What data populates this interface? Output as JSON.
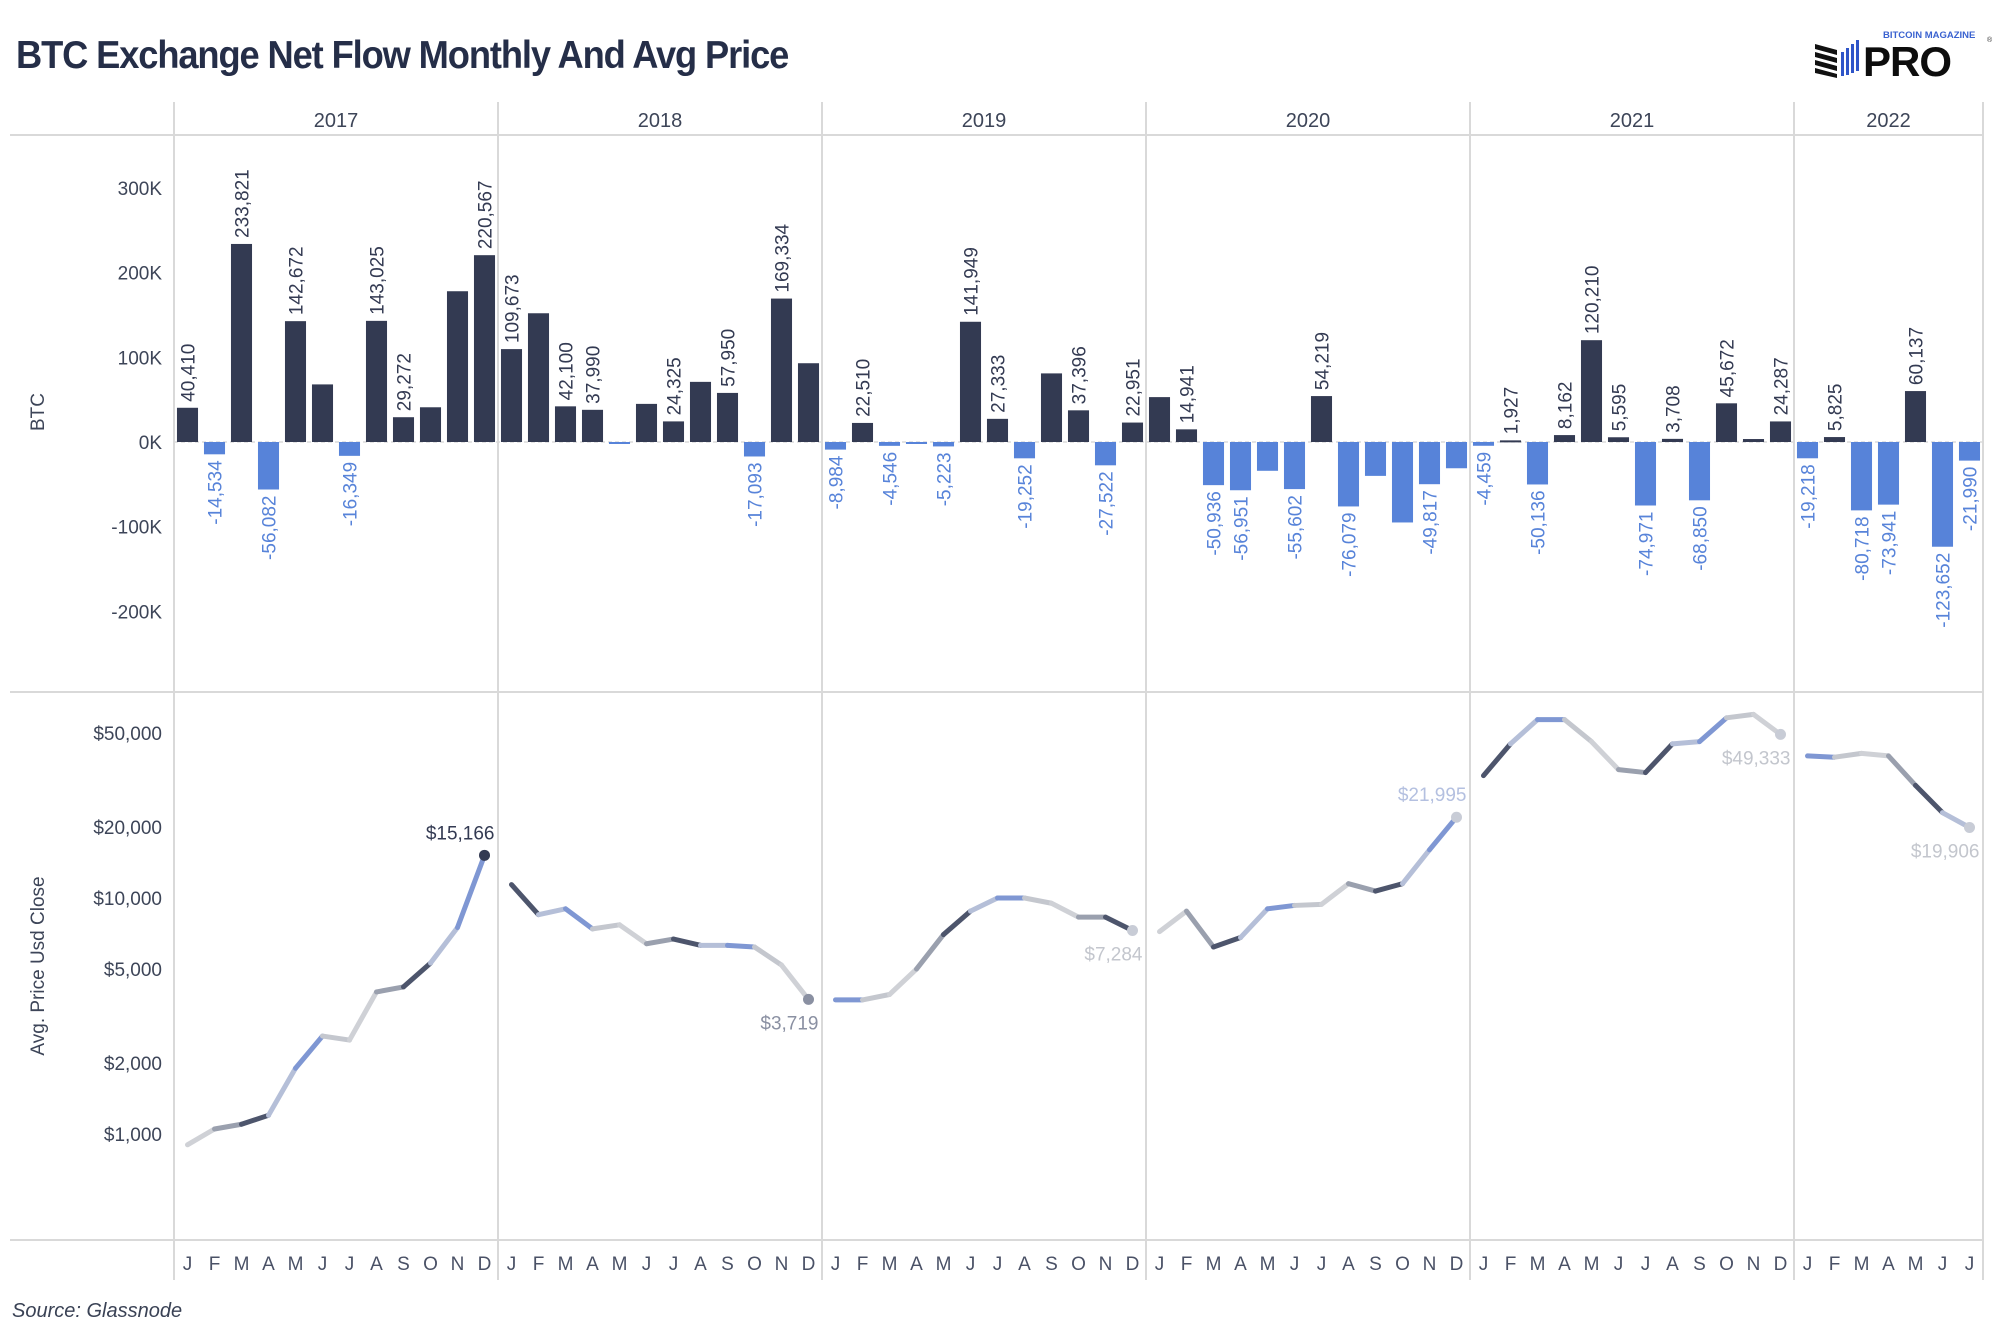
{
  "title": "BTC Exchange Net Flow Monthly And Avg Price",
  "logo": {
    "top_text": "BITCOIN MAGAZINE",
    "main_text": "PRO",
    "registered": "®"
  },
  "source": "Source: Glassnode",
  "colors": {
    "positive_bar": "#333a52",
    "negative_bar": "#5783d9",
    "positive_label": "#333a52",
    "negative_label": "#5783d9",
    "gridline": "#d9d9d9",
    "text": "#3d4558",
    "line_dark": "#333a52",
    "line_light": "#cfd1d6",
    "line_blue": "#6f8fd6"
  },
  "chart_data": [
    {
      "type": "bar",
      "title": "BTC Exchange Net Flow Monthly",
      "ylabel": "BTC",
      "ylim": [
        -250000,
        320000
      ],
      "yticks": [
        300000,
        200000,
        100000,
        0,
        -100000,
        -200000
      ],
      "ytick_labels": [
        "300K",
        "200K",
        "100K",
        "0K",
        "-100K",
        "-200K"
      ],
      "years": [
        "2017",
        "2018",
        "2019",
        "2020",
        "2021",
        "2022"
      ],
      "month_labels": [
        "J",
        "F",
        "M",
        "A",
        "M",
        "J",
        "J",
        "A",
        "S",
        "O",
        "N",
        "D"
      ],
      "series": [
        {
          "year": "2017",
          "values": [
            40410,
            -14534,
            233821,
            -56082,
            142672,
            68000,
            -16349,
            143025,
            29272,
            41000,
            178000,
            220567
          ],
          "labels": [
            "40,410",
            "-14,534",
            "233,821",
            "-56,082",
            "142,672",
            "",
            "-16,349",
            "143,025",
            "29,272",
            "",
            "",
            "220,567"
          ]
        },
        {
          "year": "2018",
          "values": [
            109673,
            152000,
            42100,
            37990,
            -1500,
            45000,
            24325,
            71000,
            57950,
            -17093,
            169334,
            93000
          ],
          "labels": [
            "109,673",
            "",
            "42,100",
            "37,990",
            "",
            "",
            "24,325",
            "",
            "57,950",
            "-17,093",
            "169,334",
            ""
          ]
        },
        {
          "year": "2019",
          "values": [
            -8984,
            22510,
            -4546,
            -1500,
            -5223,
            141949,
            27333,
            -19252,
            81000,
            37396,
            -27522,
            22951
          ],
          "labels": [
            "-8,984",
            "22,510",
            "-4,546",
            "",
            "-5,223",
            "141,949",
            "27,333",
            "-19,252",
            "",
            "37,396",
            "-27,522",
            "22,951"
          ]
        },
        {
          "year": "2020",
          "values": [
            53000,
            14941,
            -50936,
            -56951,
            -34000,
            -55602,
            54219,
            -76079,
            -40000,
            -95000,
            -49817,
            -31000
          ],
          "labels": [
            "",
            "14,941",
            "-50,936",
            "-56,951",
            "",
            "-55,602",
            "54,219",
            "-76,079",
            "",
            "",
            "-49,817",
            ""
          ]
        },
        {
          "year": "2021",
          "values": [
            -4459,
            1927,
            -50136,
            8162,
            120210,
            5595,
            -74971,
            3708,
            -68850,
            45672,
            3500,
            24287
          ],
          "labels": [
            "-4,459",
            "1,927",
            "-50,136",
            "8,162",
            "120,210",
            "5,595",
            "-74,971",
            "3,708",
            "-68,850",
            "45,672",
            "",
            "24,287"
          ]
        },
        {
          "year": "2022",
          "values": [
            -19218,
            5825,
            -80718,
            -73941,
            60137,
            -123652,
            -21990
          ],
          "labels": [
            "-19,218",
            "5,825",
            "-80,718",
            "-73,941",
            "60,137",
            "-123,652",
            "-21,990"
          ]
        }
      ]
    },
    {
      "type": "line",
      "title": "Avg Price",
      "ylabel": "Avg. Price Usd Close",
      "yscale": "log",
      "ylim": [
        750,
        70000
      ],
      "yticks": [
        50000,
        20000,
        10000,
        5000,
        2000,
        1000
      ],
      "ytick_labels": [
        "$50,000",
        "$20,000",
        "$10,000",
        "$5,000",
        "$2,000",
        "$1,000"
      ],
      "series": [
        {
          "year": "2017",
          "values": [
            900,
            1050,
            1100,
            1200,
            1900,
            2600,
            2500,
            4000,
            4200,
            5300,
            7500,
            15166
          ],
          "end_label": "$15,166",
          "label_pos": "above"
        },
        {
          "year": "2018",
          "values": [
            11400,
            8500,
            9000,
            7400,
            7700,
            6400,
            6700,
            6300,
            6300,
            6200,
            5200,
            3719
          ],
          "end_label": "$3,719",
          "label_pos": "below"
        },
        {
          "year": "2019",
          "values": [
            3700,
            3700,
            3900,
            5000,
            7000,
            8800,
            10000,
            10000,
            9500,
            8300,
            8300,
            7284
          ],
          "end_label": "$7,284",
          "label_pos": "below"
        },
        {
          "year": "2020",
          "values": [
            7200,
            8800,
            6200,
            6800,
            9000,
            9300,
            9400,
            11500,
            10700,
            11500,
            16000,
            21995
          ],
          "end_label": "$21,995",
          "label_pos": "above"
        },
        {
          "year": "2021",
          "values": [
            33000,
            45000,
            57000,
            57000,
            46000,
            35000,
            34000,
            45000,
            46000,
            58000,
            60000,
            49333
          ],
          "end_label": "$49,333",
          "label_pos": "below"
        },
        {
          "year": "2022",
          "values": [
            40000,
            39500,
            41000,
            40000,
            30000,
            23000,
            19906
          ],
          "end_label": "$19,906",
          "label_pos": "below"
        }
      ]
    }
  ]
}
